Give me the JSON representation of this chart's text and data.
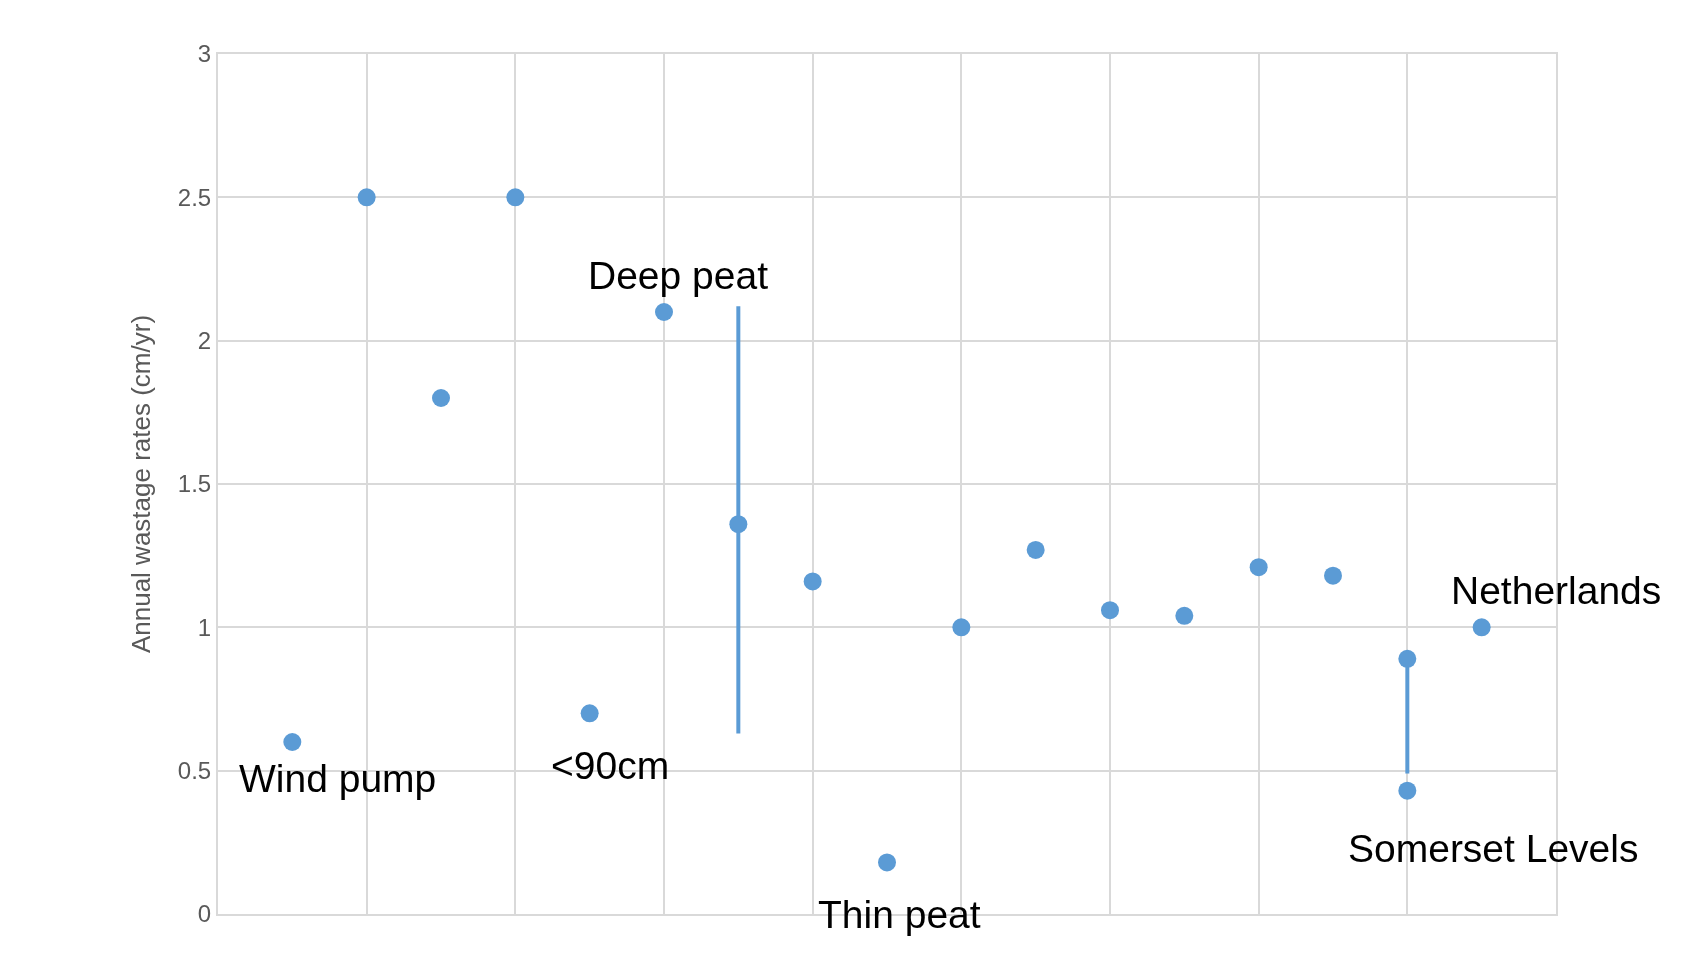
{
  "chart_data": {
    "type": "scatter",
    "ylabel": "Annual wastage rates (cm/yr)",
    "categories": [
      null,
      null,
      null,
      null,
      null,
      null,
      null,
      null,
      null,
      null,
      null,
      null,
      null,
      null,
      null,
      null,
      null
    ],
    "series": [
      {
        "color": "#5b9bd5",
        "values": [
          0.6,
          2.5,
          1.8,
          2.5,
          0.7,
          2.1,
          1.36,
          1.16,
          0.18,
          1.0,
          1.27,
          1.06,
          1.04,
          1.21,
          1.18,
          0.89,
          1.0
        ],
        "errors": [
          null,
          null,
          null,
          null,
          null,
          null,
          [
            0.63,
            2.12
          ],
          null,
          null,
          null,
          null,
          null,
          null,
          null,
          null,
          [
            0.49,
            0.89
          ],
          null
        ]
      },
      {
        "color": "#5b9bd5",
        "values": [
          null,
          null,
          null,
          null,
          null,
          null,
          null,
          null,
          null,
          null,
          null,
          null,
          null,
          null,
          null,
          0.43,
          null
        ]
      }
    ],
    "ylim": [
      0,
      3
    ],
    "yticks": [
      0,
      0.5,
      1,
      1.5,
      2,
      2.5,
      3
    ],
    "tick_labels": "y",
    "grid": true,
    "marker": "circle",
    "annotations": [
      "Wind pump",
      "<90cm",
      "Deep peat",
      "Thin peat",
      "Netherlands",
      "Somerset Levels"
    ]
  }
}
